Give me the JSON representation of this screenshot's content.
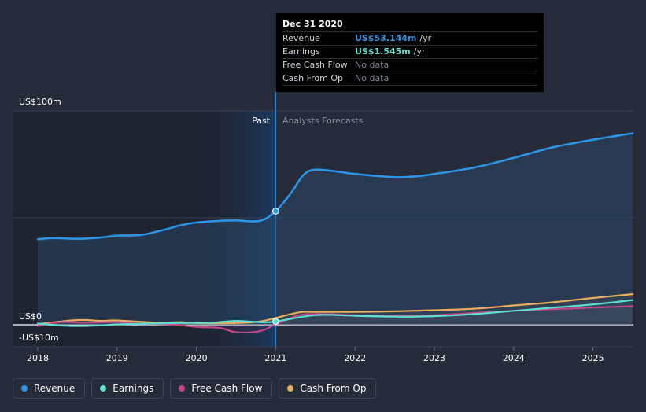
{
  "chart_data": {
    "type": "line",
    "y_axis_labels": {
      "top": "US$100m",
      "zero": "US$0",
      "bottom": "-US$10m"
    },
    "ylim": [
      -10,
      100
    ],
    "x_ticks": [
      {
        "label": "2018",
        "x": 2018.0
      },
      {
        "label": "2019",
        "x": 2019.0
      },
      {
        "label": "2020",
        "x": 2020.0
      },
      {
        "label": "2021",
        "x": 2021.0
      },
      {
        "label": "2022",
        "x": 2022.0
      },
      {
        "label": "2023",
        "x": 2023.0
      },
      {
        "label": "2024",
        "x": 2024.0
      },
      {
        "label": "2025",
        "x": 2025.0
      }
    ],
    "xlim": [
      2017.7,
      2025.5
    ],
    "divider_x": 2021.0,
    "past_label": "Past",
    "forecast_label": "Analysts Forecasts",
    "series": [
      {
        "name": "Revenue",
        "color": "#2e94e6",
        "area": true,
        "points": [
          [
            2018.0,
            40
          ],
          [
            2018.2,
            40.5
          ],
          [
            2018.5,
            40.2
          ],
          [
            2018.8,
            40.8
          ],
          [
            2019.0,
            41.7
          ],
          [
            2019.3,
            42
          ],
          [
            2019.6,
            44.5
          ],
          [
            2019.8,
            46.5
          ],
          [
            2020.0,
            47.8
          ],
          [
            2020.3,
            48.6
          ],
          [
            2020.5,
            48.8
          ],
          [
            2020.8,
            48.6
          ],
          [
            2021.0,
            53.144
          ],
          [
            2021.2,
            62
          ],
          [
            2021.35,
            70
          ],
          [
            2021.5,
            72.5
          ],
          [
            2021.8,
            71.5
          ],
          [
            2022.0,
            70.5
          ],
          [
            2022.5,
            69
          ],
          [
            2022.8,
            69.5
          ],
          [
            2023.0,
            70.5
          ],
          [
            2023.5,
            73.5
          ],
          [
            2024.0,
            78
          ],
          [
            2024.5,
            83
          ],
          [
            2025.0,
            86.5
          ],
          [
            2025.5,
            89.5
          ]
        ]
      },
      {
        "name": "Earnings",
        "color": "#5de0d0",
        "area": false,
        "points": [
          [
            2018.0,
            0.5
          ],
          [
            2018.4,
            -0.5
          ],
          [
            2018.8,
            -0.3
          ],
          [
            2019.0,
            0.2
          ],
          [
            2019.4,
            0.5
          ],
          [
            2019.8,
            0.8
          ],
          [
            2020.2,
            1.0
          ],
          [
            2020.5,
            1.8
          ],
          [
            2020.8,
            1.2
          ],
          [
            2021.0,
            1.545
          ],
          [
            2021.5,
            4.5
          ],
          [
            2022.0,
            4.2
          ],
          [
            2022.5,
            3.8
          ],
          [
            2023.0,
            4.0
          ],
          [
            2023.5,
            5.0
          ],
          [
            2024.0,
            6.5
          ],
          [
            2024.5,
            8.0
          ],
          [
            2025.0,
            9.5
          ],
          [
            2025.5,
            11.5
          ]
        ]
      },
      {
        "name": "Free Cash Flow",
        "color": "#c2468a",
        "area": false,
        "points": [
          [
            2018.0,
            -0.5
          ],
          [
            2018.3,
            1.2
          ],
          [
            2018.6,
            1.0
          ],
          [
            2019.0,
            1.2
          ],
          [
            2019.3,
            0.5
          ],
          [
            2019.7,
            0.2
          ],
          [
            2020.0,
            -1.0
          ],
          [
            2020.3,
            -1.5
          ],
          [
            2020.5,
            -3.5
          ],
          [
            2020.8,
            -3.0
          ],
          [
            2021.0,
            0.2
          ],
          [
            2021.3,
            4.5
          ],
          [
            2021.6,
            5.0
          ],
          [
            2022.0,
            4.5
          ],
          [
            2022.5,
            4.3
          ],
          [
            2023.0,
            4.5
          ],
          [
            2023.5,
            5.5
          ],
          [
            2024.0,
            6.5
          ],
          [
            2024.5,
            7.3
          ],
          [
            2025.0,
            8.0
          ],
          [
            2025.5,
            8.6
          ]
        ]
      },
      {
        "name": "Cash From Op",
        "color": "#e8ad5c",
        "area": false,
        "points": [
          [
            2018.0,
            0.3
          ],
          [
            2018.5,
            2.2
          ],
          [
            2018.8,
            1.8
          ],
          [
            2019.0,
            2.0
          ],
          [
            2019.5,
            1.0
          ],
          [
            2019.8,
            1.2
          ],
          [
            2020.0,
            0.8
          ],
          [
            2020.5,
            0.8
          ],
          [
            2020.8,
            1.5
          ],
          [
            2021.0,
            3.2
          ],
          [
            2021.3,
            5.8
          ],
          [
            2021.5,
            6.0
          ],
          [
            2022.0,
            6.0
          ],
          [
            2022.5,
            6.3
          ],
          [
            2023.0,
            6.8
          ],
          [
            2023.5,
            7.5
          ],
          [
            2024.0,
            9.0
          ],
          [
            2024.5,
            10.5
          ],
          [
            2025.0,
            12.5
          ],
          [
            2025.5,
            14.3
          ]
        ]
      }
    ],
    "highlight_points": [
      {
        "series": "Revenue",
        "x": 2021.0,
        "y": 53.144
      },
      {
        "series": "Earnings",
        "x": 2021.0,
        "y": 1.545
      }
    ]
  },
  "tooltip": {
    "date": "Dec 31 2020",
    "rows": [
      {
        "label": "Revenue",
        "value": "US$53.144m",
        "unit": "/yr",
        "color": "#2e94e6"
      },
      {
        "label": "Earnings",
        "value": "US$1.545m",
        "unit": "/yr",
        "color": "#5de0d0"
      },
      {
        "label": "Free Cash Flow",
        "value": "No data",
        "unit": "",
        "color": "#7b808a"
      },
      {
        "label": "Cash From Op",
        "value": "No data",
        "unit": "",
        "color": "#7b808a"
      }
    ]
  },
  "legend": [
    {
      "label": "Revenue",
      "color": "#2e94e6"
    },
    {
      "label": "Earnings",
      "color": "#5de0d0"
    },
    {
      "label": "Free Cash Flow",
      "color": "#c2468a"
    },
    {
      "label": "Cash From Op",
      "color": "#e8ad5c"
    }
  ]
}
